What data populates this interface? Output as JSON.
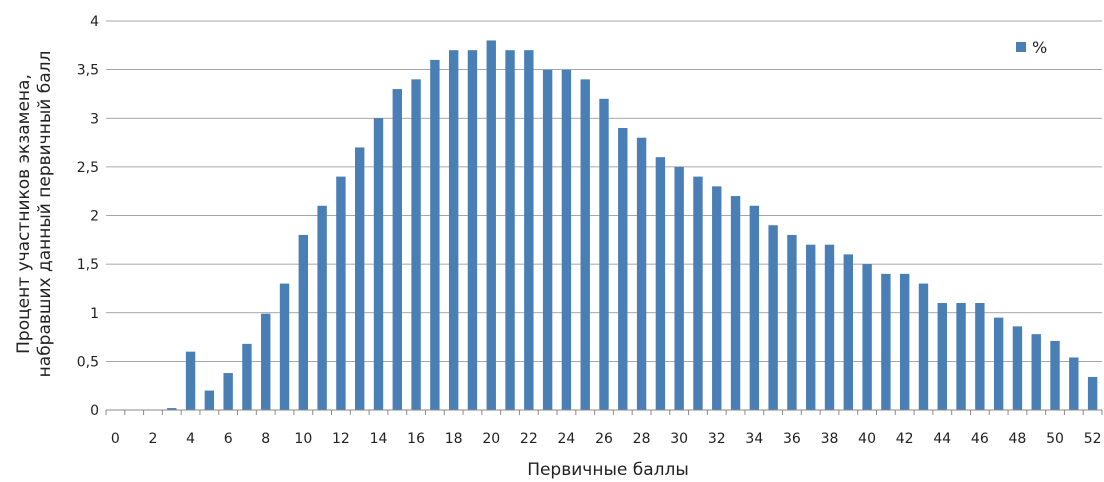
{
  "chart_data": {
    "type": "bar",
    "title": "",
    "xlabel": "Первичные баллы",
    "ylabel_lines": [
      "Процент участников экзамена,",
      "набравших данный первичный балл"
    ],
    "ylim": [
      0,
      4
    ],
    "yticks": [
      "0",
      "0,5",
      "1",
      "1,5",
      "2",
      "2,5",
      "3",
      "3,5",
      "4"
    ],
    "grid": true,
    "legend_position": "top-right",
    "color": "#4a7fb5",
    "categories": [
      0,
      1,
      2,
      3,
      4,
      5,
      6,
      7,
      8,
      9,
      10,
      11,
      12,
      13,
      14,
      15,
      16,
      17,
      18,
      19,
      20,
      21,
      22,
      23,
      24,
      25,
      26,
      27,
      28,
      29,
      30,
      31,
      32,
      33,
      34,
      35,
      36,
      37,
      38,
      39,
      40,
      41,
      42,
      43,
      44,
      45,
      46,
      47,
      48,
      49,
      50,
      51,
      52
    ],
    "xtick_labels": [
      "0",
      "2",
      "4",
      "6",
      "8",
      "10",
      "12",
      "14",
      "16",
      "18",
      "20",
      "22",
      "24",
      "26",
      "28",
      "30",
      "32",
      "34",
      "36",
      "38",
      "40",
      "42",
      "44",
      "46",
      "48",
      "50",
      "52"
    ],
    "series": [
      {
        "name": "%",
        "values": [
          0,
          0,
          0,
          0.02,
          0.6,
          0.2,
          0.38,
          0.68,
          0.99,
          1.3,
          1.8,
          2.1,
          2.4,
          2.7,
          3.0,
          3.3,
          3.4,
          3.6,
          3.7,
          3.7,
          3.8,
          3.7,
          3.7,
          3.5,
          3.5,
          3.4,
          3.2,
          2.9,
          2.8,
          2.6,
          2.5,
          2.4,
          2.3,
          2.2,
          2.1,
          1.9,
          1.8,
          1.7,
          1.7,
          1.6,
          1.5,
          1.4,
          1.4,
          1.3,
          1.1,
          1.1,
          1.1,
          0.95,
          0.86,
          0.78,
          0.71,
          0.54,
          0.34
        ]
      }
    ]
  }
}
